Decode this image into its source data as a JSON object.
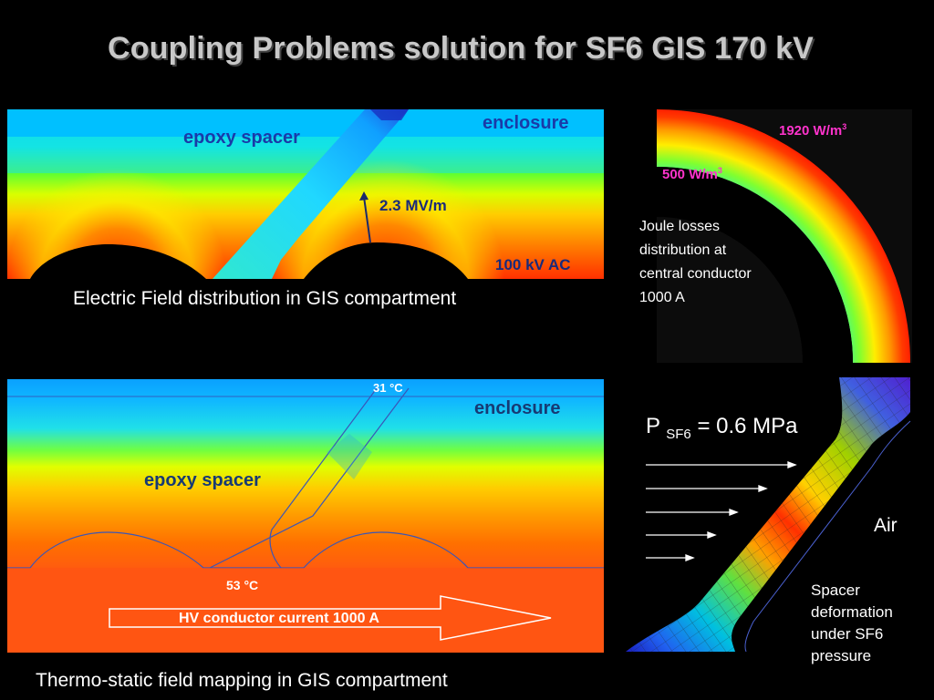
{
  "title": "Coupling Problems solution for SF6 GIS 170 kV",
  "electric_panel": {
    "enclosure": "enclosure",
    "epoxy_spacer": "epoxy spacer",
    "field_value": "2.3 MV/m",
    "voltage": "100 kV AC",
    "caption": "Electric Field distribution in GIS compartment"
  },
  "joule_panel": {
    "max_label": "1920 W/m",
    "min_label": "500 W/m",
    "exponent": "3",
    "description": [
      "Joule losses",
      "distribution at",
      "central conductor",
      "1000 A"
    ]
  },
  "thermal_panel": {
    "top_temp": "31 °C",
    "enclosure": "enclosure",
    "epoxy_spacer": "epoxy spacer",
    "bottom_temp": "53 °C",
    "arrow_label": "HV conductor current 1000 A",
    "caption": "Thermo-static field mapping in GIS compartment"
  },
  "mechanical_panel": {
    "pressure_label": "P",
    "pressure_sub": "SF6",
    "pressure_value": "= 0.6 MPa",
    "air": "Air",
    "description": [
      "Spacer",
      "deformation",
      "under SF6",
      "pressure"
    ]
  },
  "colors": {
    "field_high": "#ff3000",
    "field_low": "#00ccff",
    "label_blue": "#1a3aa8",
    "magenta": "#ff33cc"
  }
}
